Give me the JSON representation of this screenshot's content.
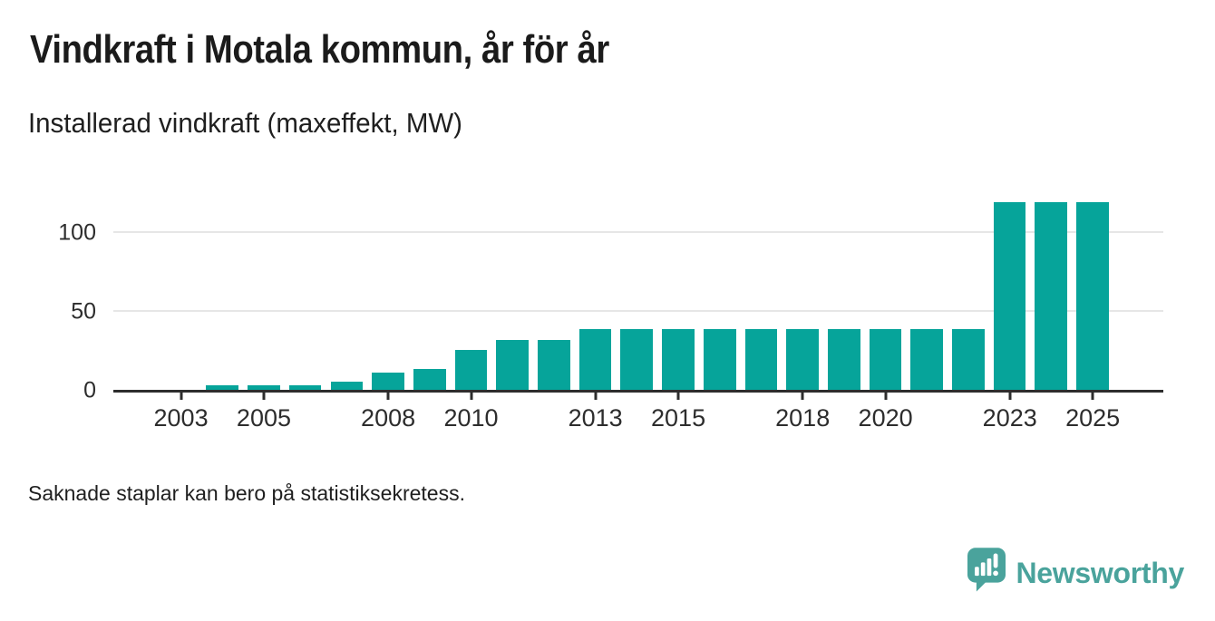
{
  "header": {
    "title": "Vindkraft i Motala kommun, år för år",
    "subtitle": "Installerad vindkraft (maxeffekt, MW)"
  },
  "footnote": "Saknade staplar kan bero på statistiksekretess.",
  "logo": {
    "text": "Newsworthy",
    "icon": "speech-bubble-bar-chart-icon"
  },
  "colors": {
    "bar": "#06a49a",
    "axis": "#2d2d2d",
    "grid": "#e6e6e6",
    "title": "#1b1b1b",
    "text": "#2d2d2d",
    "logo": "#4aa39c"
  },
  "chart_data": {
    "type": "bar",
    "title": "Vindkraft i Motala kommun, år för år",
    "subtitle": "Installerad vindkraft (maxeffekt, MW)",
    "xlabel": "",
    "ylabel": "Installerad vindkraft (maxeffekt, MW)",
    "x": [
      2002,
      2003,
      2004,
      2005,
      2006,
      2007,
      2008,
      2009,
      2010,
      2011,
      2012,
      2013,
      2014,
      2015,
      2016,
      2017,
      2018,
      2019,
      2020,
      2021,
      2022,
      2023,
      2024,
      2025
    ],
    "values": [
      null,
      null,
      3.5,
      3.5,
      3.5,
      6,
      11.5,
      14,
      26,
      32,
      32,
      39,
      39,
      39,
      39,
      39,
      39,
      39,
      39,
      39,
      39,
      120,
      120,
      120
    ],
    "yticks": [
      0,
      50,
      100
    ],
    "xticks": [
      2003,
      2005,
      2008,
      2010,
      2013,
      2015,
      2018,
      2020,
      2023,
      2025
    ],
    "ylim": [
      0,
      125
    ],
    "grid": true,
    "legend": "none",
    "missing_bars_note": "Saknade staplar kan bero på statistiksekretess."
  }
}
